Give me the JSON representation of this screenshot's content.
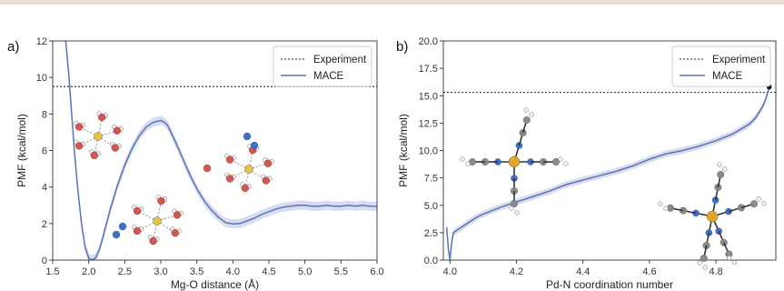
{
  "chart_data": [
    {
      "type": "line",
      "panel_label": "a)",
      "xlabel": "Mg-O distance (Å)",
      "ylabel": "PMF (kcal/mol)",
      "xlim": [
        1.5,
        6.0
      ],
      "ylim": [
        0,
        12
      ],
      "xticks": [
        "1.5",
        "2.0",
        "2.5",
        "3.0",
        "3.5",
        "4.0",
        "4.5",
        "5.0",
        "5.5",
        "6.0"
      ],
      "yticks": [
        "0",
        "2",
        "4",
        "6",
        "8",
        "10",
        "12"
      ],
      "legend": {
        "position": "top-right",
        "entries": [
          "Experiment",
          "MACE"
        ]
      },
      "reference_line": {
        "name": "Experiment",
        "y": 9.5,
        "style": "dotted"
      },
      "series": [
        {
          "name": "MACE",
          "color": "#5b73b8",
          "band_color": "#c9d2ea",
          "x": [
            1.68,
            1.72,
            1.76,
            1.8,
            1.85,
            1.9,
            1.95,
            2.0,
            2.05,
            2.1,
            2.15,
            2.2,
            2.3,
            2.4,
            2.5,
            2.6,
            2.7,
            2.8,
            2.9,
            3.0,
            3.05,
            3.1,
            3.2,
            3.3,
            3.4,
            3.5,
            3.6,
            3.7,
            3.8,
            3.9,
            4.0,
            4.1,
            4.2,
            4.3,
            4.4,
            4.5,
            4.6,
            4.7,
            4.8,
            4.9,
            5.0,
            5.1,
            5.2,
            5.3,
            5.4,
            5.5,
            5.6,
            5.7,
            5.8,
            5.9,
            6.0
          ],
          "y": [
            12.0,
            10.3,
            8.2,
            6.0,
            3.8,
            2.0,
            0.7,
            0.1,
            0.0,
            0.15,
            0.6,
            1.3,
            2.8,
            4.1,
            5.2,
            6.1,
            6.8,
            7.3,
            7.55,
            7.65,
            7.55,
            7.35,
            6.5,
            5.6,
            4.7,
            3.9,
            3.25,
            2.75,
            2.35,
            2.05,
            1.98,
            2.0,
            2.15,
            2.3,
            2.5,
            2.65,
            2.8,
            2.9,
            2.95,
            3.0,
            3.0,
            2.95,
            2.95,
            3.0,
            2.95,
            2.95,
            3.0,
            2.95,
            3.0,
            2.95,
            2.95
          ],
          "uncertainty": 0.25
        }
      ]
    },
    {
      "type": "line",
      "panel_label": "b)",
      "xlabel": "Pd-N coordination number",
      "ylabel": "PMF (kcal/mol)",
      "xlim": [
        3.98,
        4.98
      ],
      "ylim": [
        0,
        20
      ],
      "xticks": [
        "4.0",
        "4.2",
        "4.4",
        "4.6",
        "4.8"
      ],
      "yticks": [
        "0.0",
        "2.5",
        "5.0",
        "7.5",
        "10.0",
        "12.5",
        "15.0",
        "17.5",
        "20.0"
      ],
      "legend": {
        "position": "top-right",
        "entries": [
          "Experiment",
          "MACE"
        ]
      },
      "reference_line": {
        "name": "Experiment",
        "y": 15.3,
        "style": "dotted"
      },
      "end_point": {
        "x": 4.96,
        "y": 15.8
      },
      "series": [
        {
          "name": "MACE",
          "color": "#5b73b8",
          "band_color": "#c9d2ea",
          "x": [
            3.99,
            3.995,
            4.0,
            4.005,
            4.01,
            4.02,
            4.04,
            4.06,
            4.08,
            4.1,
            4.15,
            4.2,
            4.25,
            4.3,
            4.35,
            4.4,
            4.45,
            4.5,
            4.55,
            4.6,
            4.65,
            4.7,
            4.75,
            4.8,
            4.85,
            4.9,
            4.92,
            4.94,
            4.95,
            4.96
          ],
          "y": [
            3.0,
            1.0,
            0.0,
            1.5,
            2.5,
            2.7,
            3.1,
            3.5,
            3.9,
            4.2,
            4.8,
            5.3,
            5.8,
            6.3,
            6.9,
            7.3,
            7.7,
            8.1,
            8.6,
            9.2,
            9.7,
            10.0,
            10.4,
            10.9,
            11.5,
            12.4,
            13.0,
            14.0,
            14.7,
            15.8
          ],
          "uncertainty": 0.3
        }
      ]
    }
  ]
}
